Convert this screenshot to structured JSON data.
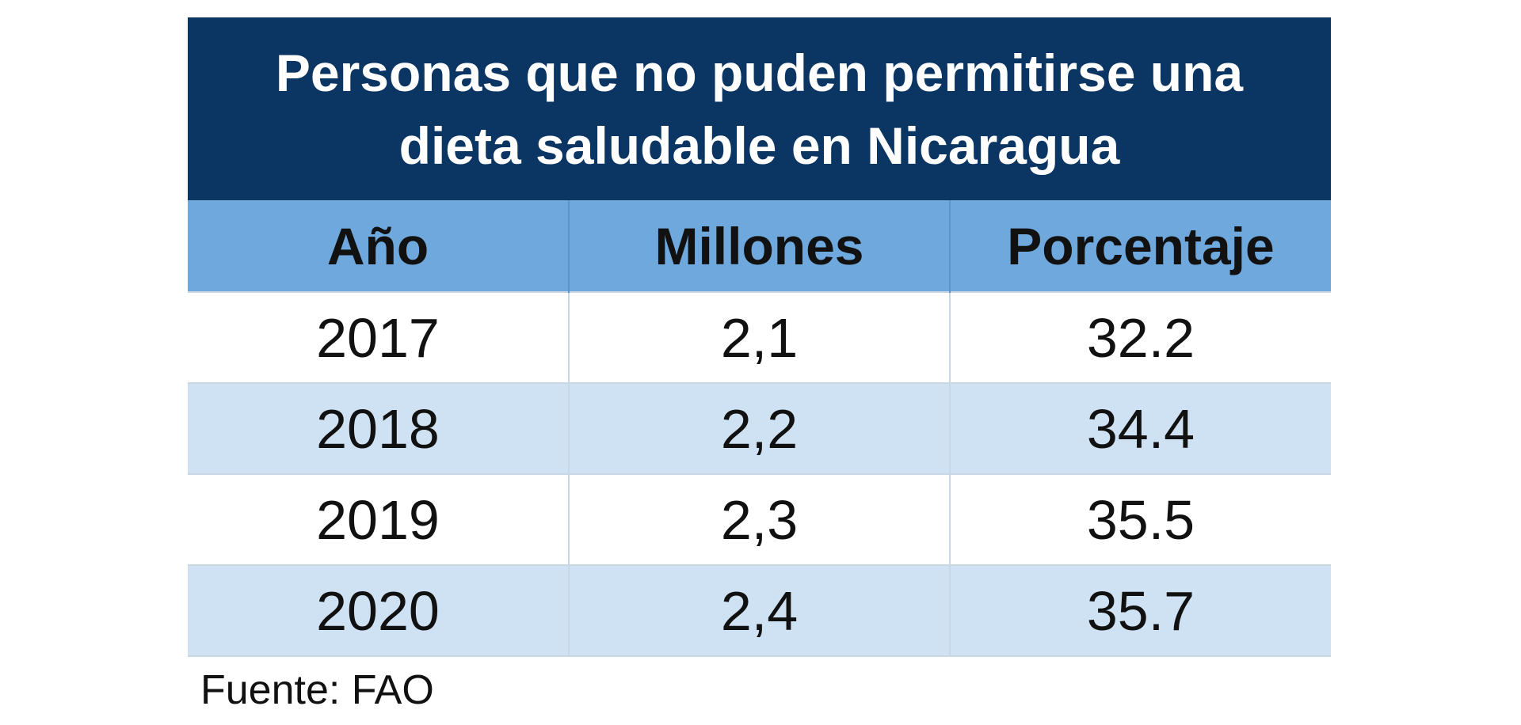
{
  "chart_data": {
    "type": "table",
    "title_lines": [
      "Personas que no puden permitirse una",
      "dieta saludable en Nicaragua"
    ],
    "columns": [
      "Año",
      "Millones",
      "Porcentaje"
    ],
    "rows": [
      [
        "2017",
        "2,1",
        "32.2"
      ],
      [
        "2018",
        "2,2",
        "34.4"
      ],
      [
        "2019",
        "2,3",
        "35.5"
      ],
      [
        "2020",
        "2,4",
        "35.7"
      ]
    ],
    "source": "Fuente: FAO"
  },
  "colors": {
    "title_bg": "#0b3562",
    "header_bg": "#6fa8dc",
    "alt_row_bg": "#cfe2f3"
  }
}
